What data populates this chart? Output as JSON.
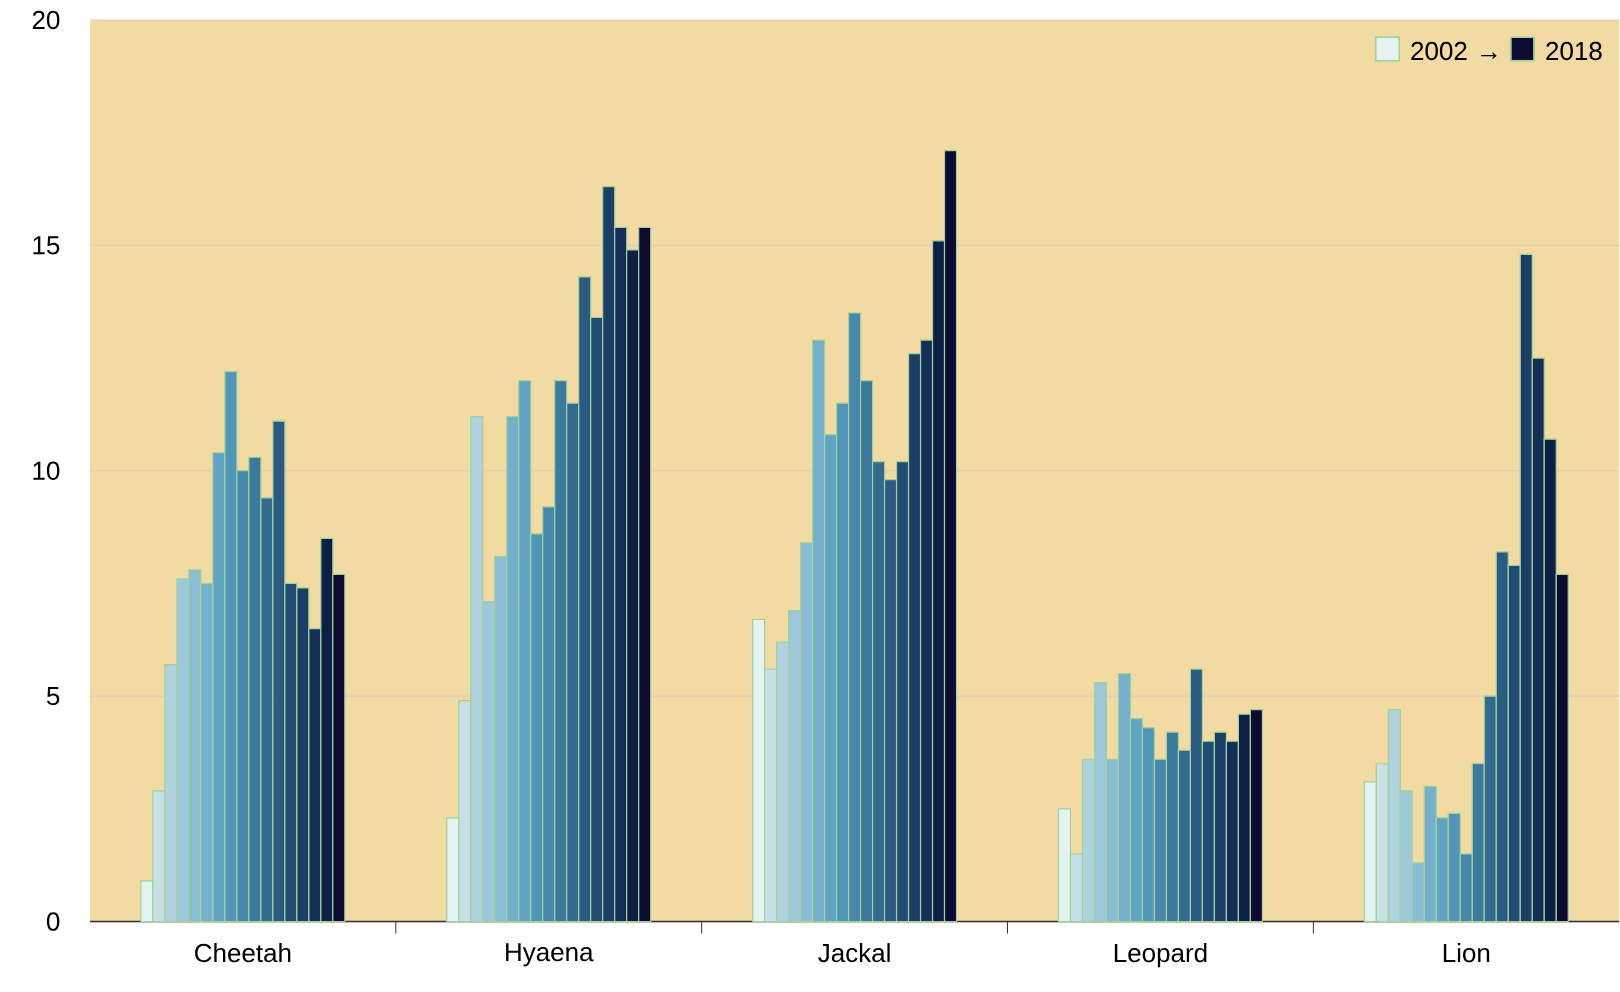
{
  "chart_data": {
    "type": "bar",
    "categories": [
      "Cheetah",
      "Hyaena",
      "Jackal",
      "Leopard",
      "Lion"
    ],
    "ylim": [
      0,
      20
    ],
    "yticks": [
      0,
      5,
      10,
      15,
      20
    ],
    "grid": "y",
    "legend": "top right",
    "annotations": [
      "→"
    ],
    "series": [
      {
        "name": "2002",
        "color": "#e3f4f0",
        "values": [
          0.9,
          2.3,
          6.7,
          2.5,
          3.1
        ]
      },
      {
        "color": "#c8e0e4",
        "values": [
          2.9,
          4.9,
          5.6,
          1.5,
          3.5
        ]
      },
      {
        "color": "#b1d3df",
        "values": [
          5.7,
          11.2,
          6.2,
          3.6,
          4.7
        ]
      },
      {
        "color": "#9dc8da",
        "values": [
          7.6,
          7.1,
          6.9,
          5.3,
          2.9
        ]
      },
      {
        "color": "#88bdd3",
        "values": [
          7.8,
          8.1,
          8.4,
          3.6,
          1.3
        ]
      },
      {
        "color": "#74b0cc",
        "values": [
          7.5,
          11.2,
          12.9,
          5.5,
          3.0
        ]
      },
      {
        "color": "#61a3c3",
        "values": [
          10.4,
          12.0,
          10.8,
          4.5,
          2.3
        ]
      },
      {
        "color": "#5196b8",
        "values": [
          12.2,
          8.6,
          11.5,
          4.3,
          2.4
        ]
      },
      {
        "color": "#4588ab",
        "values": [
          10.0,
          9.2,
          13.5,
          3.6,
          1.5
        ]
      },
      {
        "color": "#3b799d",
        "values": [
          10.3,
          12.0,
          12.0,
          4.2,
          3.5
        ]
      },
      {
        "color": "#336a8f",
        "values": [
          9.4,
          11.5,
          10.2,
          3.8,
          5.0
        ]
      },
      {
        "color": "#2b5b82",
        "values": [
          11.1,
          14.3,
          9.8,
          5.6,
          8.2
        ]
      },
      {
        "color": "#234c74",
        "values": [
          7.5,
          13.4,
          10.2,
          4.0,
          7.9
        ]
      },
      {
        "color": "#1b3d66",
        "values": [
          7.4,
          16.3,
          12.6,
          4.2,
          14.8
        ]
      },
      {
        "color": "#142e58",
        "values": [
          6.5,
          15.4,
          12.9,
          4.0,
          12.5
        ]
      },
      {
        "color": "#0e1f45",
        "values": [
          8.5,
          14.9,
          15.1,
          4.6,
          10.7
        ]
      },
      {
        "name": "2018",
        "color": "#0c0a30",
        "values": [
          7.7,
          15.4,
          17.1,
          4.7,
          7.7
        ]
      }
    ]
  }
}
